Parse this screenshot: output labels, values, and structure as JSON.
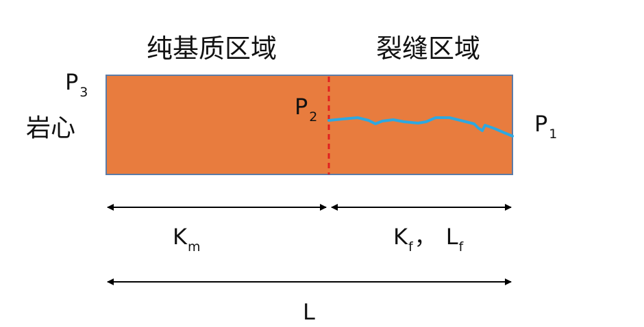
{
  "regions": {
    "matrix": "纯基质区域",
    "fracture": "裂缝区域"
  },
  "core_label": "岩心",
  "pressures": {
    "p1": {
      "base": "P",
      "sub": "1"
    },
    "p2": {
      "base": "P",
      "sub": "2"
    },
    "p3": {
      "base": "P",
      "sub": "3"
    }
  },
  "lengths": {
    "km": {
      "base": "K",
      "sub": "m"
    },
    "kf": {
      "base": "K",
      "sub": "f"
    },
    "kf_sep": "，",
    "lf": {
      "base": "L",
      "sub": "f"
    },
    "total": "L"
  },
  "colors": {
    "core_fill": "#E87C3E",
    "core_border": "#5B7BA6",
    "fracture": "#2EA8E0",
    "boundary": "#E02020",
    "arrow": "#000000"
  }
}
